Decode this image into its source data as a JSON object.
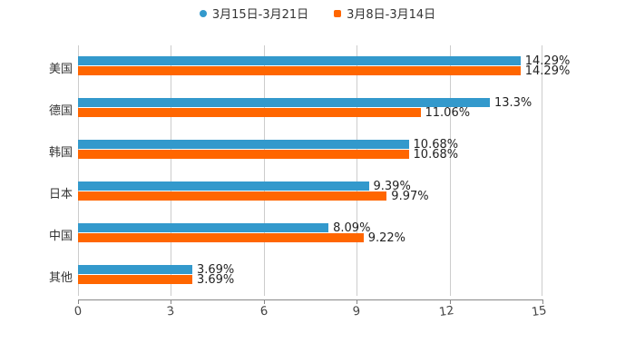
{
  "chart_data": {
    "type": "bar",
    "orientation": "horizontal",
    "title": "",
    "xlabel": "",
    "ylabel": "",
    "xlim": [
      0,
      15
    ],
    "xticks": [
      "0",
      "3",
      "6",
      "9",
      "12",
      "15"
    ],
    "grid": true,
    "legend_position": "top",
    "categories": [
      "美国",
      "德国",
      "韩国",
      "日本",
      "中国",
      "其他"
    ],
    "series": [
      {
        "name": "3月15日-3月21日",
        "color": "#3399cc",
        "values": [
          14.29,
          13.3,
          10.68,
          9.39,
          8.09,
          3.69
        ],
        "labels": [
          "14.29%",
          "13.3%",
          "10.68%",
          "9.39%",
          "8.09%",
          "3.69%"
        ]
      },
      {
        "name": "3月8日-3月14日",
        "color": "#ff6600",
        "values": [
          14.29,
          11.06,
          10.68,
          9.97,
          9.22,
          3.69
        ],
        "labels": [
          "14.29%",
          "11.06%",
          "10.68%",
          "9.97%",
          "9.22%",
          "3.69%"
        ]
      }
    ]
  }
}
